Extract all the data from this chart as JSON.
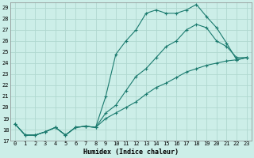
{
  "xlabel": "Humidex (Indice chaleur)",
  "background_color": "#cceee8",
  "grid_color": "#b0d8d0",
  "line_color": "#1a7a6e",
  "xlim": [
    -0.5,
    23.5
  ],
  "ylim": [
    17,
    29.5
  ],
  "yticks": [
    17,
    18,
    19,
    20,
    21,
    22,
    23,
    24,
    25,
    26,
    27,
    28,
    29
  ],
  "xticks": [
    0,
    1,
    2,
    3,
    4,
    5,
    6,
    7,
    8,
    9,
    10,
    11,
    12,
    13,
    14,
    15,
    16,
    17,
    18,
    19,
    20,
    21,
    22,
    23
  ],
  "series": [
    [
      18.5,
      17.5,
      17.5,
      17.8,
      18.2,
      17.5,
      18.2,
      18.3,
      18.2,
      21.0,
      24.8,
      26.0,
      27.0,
      28.5,
      28.8,
      28.5,
      28.5,
      28.8,
      29.3,
      28.2,
      27.2,
      25.8,
      24.3,
      24.5
    ],
    [
      18.5,
      17.5,
      17.5,
      17.8,
      18.2,
      17.5,
      18.2,
      18.3,
      18.2,
      19.5,
      20.2,
      21.5,
      22.8,
      23.5,
      24.5,
      25.5,
      26.0,
      27.0,
      27.5,
      27.2,
      26.0,
      25.5,
      24.5,
      24.5
    ],
    [
      18.5,
      17.5,
      17.5,
      17.8,
      18.2,
      17.5,
      18.2,
      18.3,
      18.2,
      19.0,
      19.5,
      20.0,
      20.5,
      21.2,
      21.8,
      22.2,
      22.7,
      23.2,
      23.5,
      23.8,
      24.0,
      24.2,
      24.3,
      24.5
    ]
  ]
}
